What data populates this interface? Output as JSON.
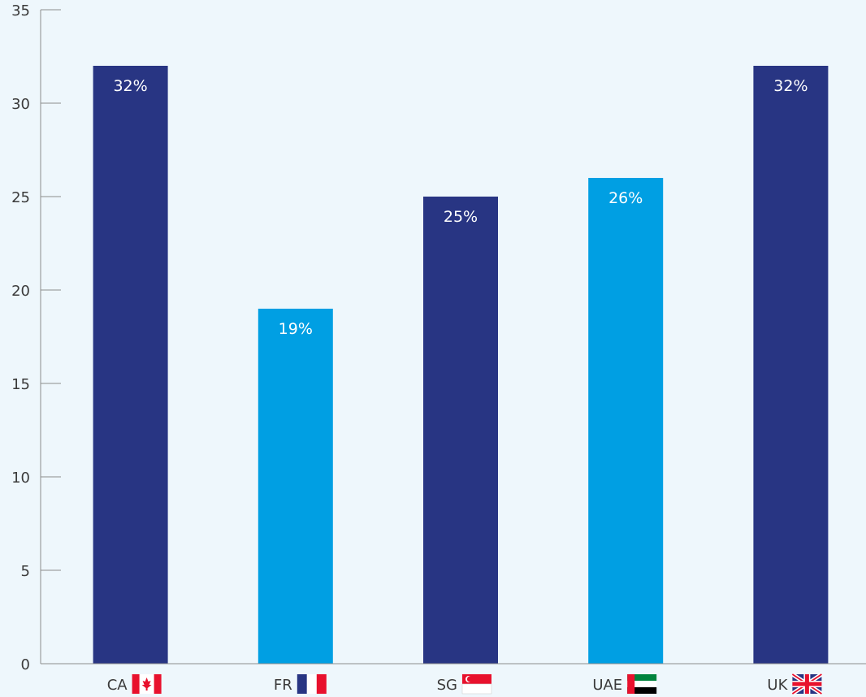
{
  "chart_data": {
    "type": "bar",
    "categories": [
      "CA",
      "FR",
      "SG",
      "UAE",
      "UK"
    ],
    "flags": [
      "canada-flag-icon",
      "france-flag-icon",
      "singapore-flag-icon",
      "uae-flag-icon",
      "uk-flag-icon"
    ],
    "values": [
      32,
      19,
      25,
      26,
      32
    ],
    "value_labels": [
      "32%",
      "19%",
      "25%",
      "26%",
      "32%"
    ],
    "bar_colors": [
      "#283583",
      "#009fe3",
      "#283583",
      "#009fe3",
      "#283583"
    ],
    "ylim": [
      0,
      35
    ],
    "yticks": [
      0,
      5,
      10,
      15,
      20,
      25,
      30,
      35
    ],
    "title": "",
    "xlabel": "",
    "ylabel": "",
    "grid": false,
    "background": "#eef7fc"
  }
}
